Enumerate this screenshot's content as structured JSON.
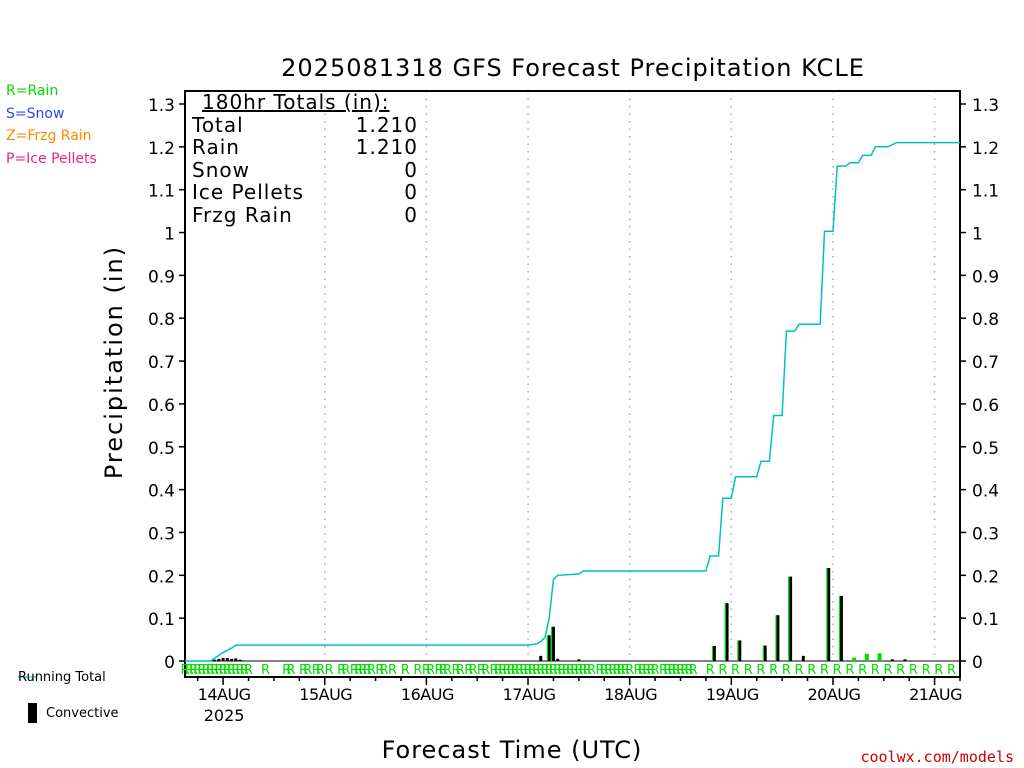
{
  "chart_data": {
    "type": "bar",
    "title": "2025081318 GFS Forecast Precipitation KCLE",
    "xlabel": "Forecast Time (UTC)",
    "ylabel": "Precipitation (in)",
    "ylim": [
      0,
      1.3
    ],
    "yticks": [
      "0",
      "0.1",
      "0.2",
      "0.3",
      "0.4",
      "0.5",
      "0.6",
      "0.7",
      "0.8",
      "0.9",
      "1",
      "1.1",
      "1.2",
      "1.3"
    ],
    "xticks": [
      "14AUG",
      "15AUG",
      "16AUG",
      "17AUG",
      "18AUG",
      "19AUG",
      "20AUG",
      "21AUG"
    ],
    "xtick_sub": "2025",
    "x_range_hours": [
      -3,
      180
    ],
    "grid": "vertical dotted at day boundaries",
    "credit": "coolwx.com/models",
    "type_legend": [
      {
        "label": "R=Rain",
        "color": "#00dd00"
      },
      {
        "label": "S=Snow",
        "color": "#3344ee"
      },
      {
        "label": "Z=Frzg Rain",
        "color": "#ff8800"
      },
      {
        "label": "P=Ice Pellets",
        "color": "#ee2288"
      }
    ],
    "totals": {
      "header": "180hr Totals (in):",
      "rows": [
        {
          "label": "Total",
          "value": "1.210"
        },
        {
          "label": "Rain",
          "value": "1.210"
        },
        {
          "label": "Snow",
          "value": "0"
        },
        {
          "label": "Ice Pellets",
          "value": "0"
        },
        {
          "label": "Frzg Rain",
          "value": "0"
        }
      ]
    },
    "series": [
      {
        "name": "Running Total",
        "kind": "line",
        "color": "#00c0c0",
        "points": [
          [
            -3,
            0
          ],
          [
            3,
            0
          ],
          [
            6,
            0.02
          ],
          [
            8,
            0.03
          ],
          [
            9,
            0.037
          ],
          [
            78,
            0.037
          ],
          [
            80,
            0.04
          ],
          [
            81,
            0.045
          ],
          [
            82,
            0.055
          ],
          [
            83,
            0.1
          ],
          [
            84,
            0.19
          ],
          [
            85,
            0.2
          ],
          [
            90,
            0.203
          ],
          [
            91,
            0.21
          ],
          [
            120,
            0.21
          ],
          [
            121,
            0.245
          ],
          [
            123,
            0.245
          ],
          [
            124,
            0.38
          ],
          [
            126,
            0.38
          ],
          [
            127,
            0.43
          ],
          [
            132,
            0.43
          ],
          [
            133,
            0.466
          ],
          [
            135,
            0.466
          ],
          [
            136,
            0.573
          ],
          [
            138,
            0.573
          ],
          [
            139,
            0.77
          ],
          [
            141,
            0.77
          ],
          [
            142,
            0.786
          ],
          [
            147,
            0.786
          ],
          [
            148,
            1.003
          ],
          [
            150,
            1.003
          ],
          [
            151,
            1.155
          ],
          [
            153,
            1.155
          ],
          [
            154,
            1.163
          ],
          [
            156,
            1.163
          ],
          [
            157,
            1.18
          ],
          [
            159,
            1.18
          ],
          [
            160,
            1.2
          ],
          [
            163,
            1.2
          ],
          [
            165,
            1.21
          ],
          [
            180,
            1.21
          ]
        ]
      },
      {
        "name": "Convective",
        "kind": "bar",
        "color": "#000000",
        "points": [
          [
            4,
            0.003
          ],
          [
            5,
            0.005
          ],
          [
            6,
            0.007
          ],
          [
            7,
            0.007
          ],
          [
            8,
            0.005
          ],
          [
            9,
            0.006
          ],
          [
            10,
            0.003
          ],
          [
            81,
            0.012
          ],
          [
            83,
            0.06
          ],
          [
            84,
            0.08
          ],
          [
            85,
            0.005
          ],
          [
            90,
            0.004
          ],
          [
            122,
            0.035
          ],
          [
            125,
            0.135
          ],
          [
            128,
            0.048
          ],
          [
            134,
            0.036
          ],
          [
            137,
            0.107
          ],
          [
            140,
            0.197
          ],
          [
            143,
            0.012
          ],
          [
            149,
            0.217
          ],
          [
            152,
            0.152
          ],
          [
            164,
            0.004
          ],
          [
            167,
            0.004
          ]
        ]
      },
      {
        "name": "Rain",
        "kind": "bar",
        "color": "#00dd00",
        "points": [
          [
            155,
            0.008
          ],
          [
            158,
            0.017
          ],
          [
            161,
            0.018
          ]
        ]
      }
    ],
    "precip_type_markers": {
      "label": "R",
      "hours": [
        -3,
        -2,
        -1,
        0,
        1,
        2,
        3,
        4,
        5,
        6,
        7,
        8,
        9,
        10,
        11,
        12,
        16,
        21,
        22,
        25,
        26,
        28,
        29,
        31,
        34,
        35,
        37,
        38,
        39,
        40,
        41,
        43,
        44,
        46,
        49,
        52,
        54,
        55,
        57,
        58,
        59,
        61,
        62,
        64,
        65,
        67,
        68,
        70,
        71,
        72,
        73,
        74,
        75,
        76,
        77,
        78,
        79,
        80,
        81,
        82,
        83,
        84,
        85,
        86,
        87,
        88,
        89,
        90,
        91,
        92,
        93,
        95,
        96,
        97,
        98,
        99,
        100,
        101,
        102,
        104,
        105,
        106,
        107,
        108,
        110,
        111,
        112,
        113,
        114,
        115,
        116,
        117,
        121,
        124,
        127,
        130,
        133,
        136,
        139,
        142,
        145,
        148,
        151,
        154,
        157,
        160,
        163,
        166,
        169,
        172,
        175,
        178
      ]
    }
  }
}
